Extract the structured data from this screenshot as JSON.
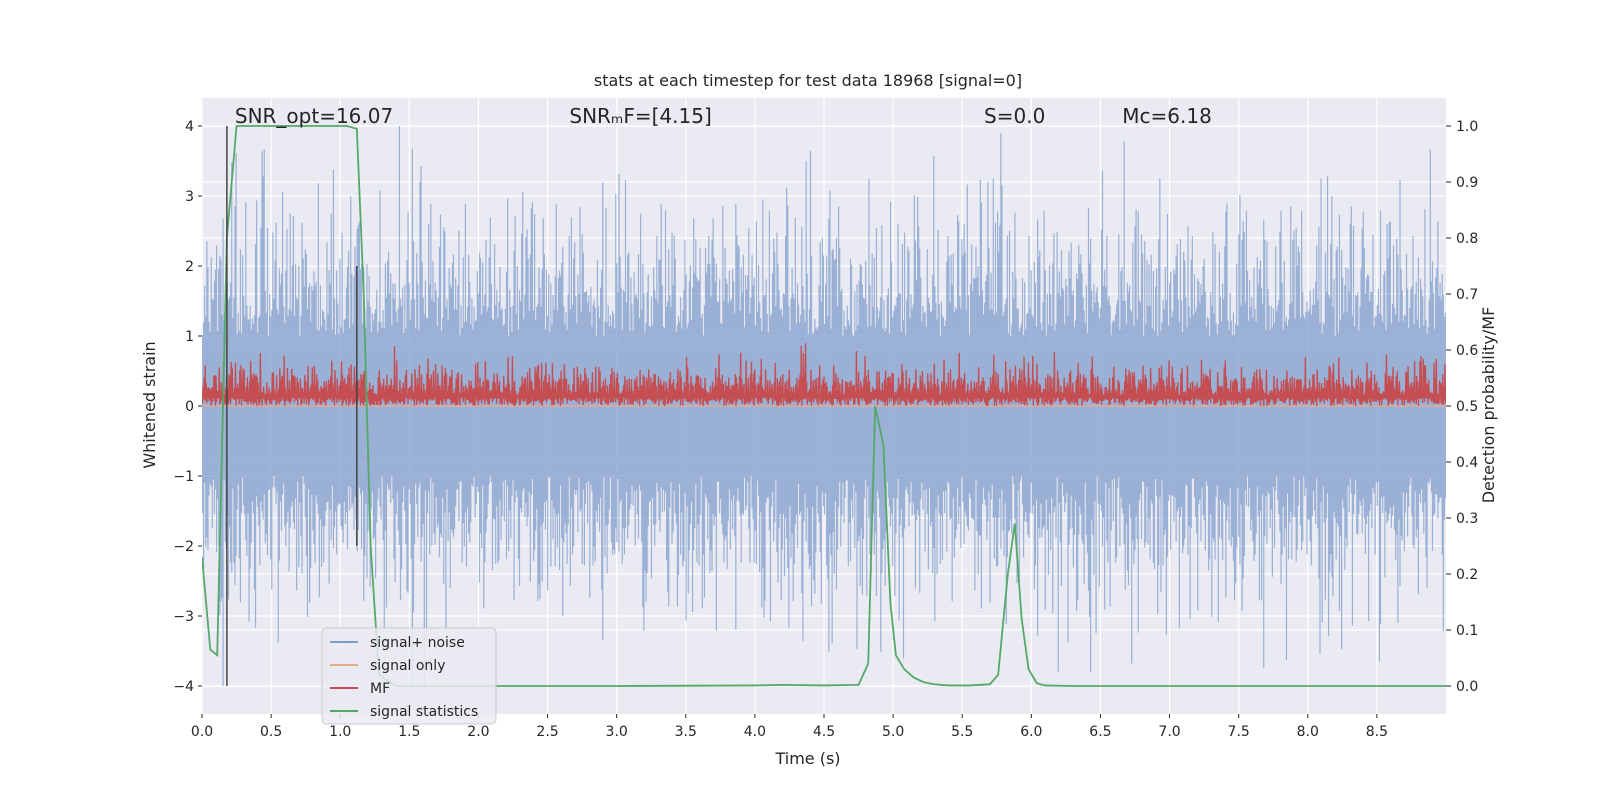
{
  "chart_data": {
    "type": "line",
    "title": "stats at each timestep for test data 18968 [signal=0]",
    "xlabel": "Time (s)",
    "ylabel": "Whitened strain",
    "ylabel_right": "Detection probability/MF",
    "xlim": [
      0.0,
      9.0
    ],
    "ylim": [
      -4.4,
      4.4
    ],
    "ylim_right": [
      -0.05,
      1.05
    ],
    "x_ticks": [
      0.0,
      0.5,
      1.0,
      1.5,
      2.0,
      2.5,
      3.0,
      3.5,
      4.0,
      4.5,
      5.0,
      5.5,
      6.0,
      6.5,
      7.0,
      7.5,
      8.0,
      8.5
    ],
    "x_tick_labels": [
      "0.0",
      "0.5",
      "1.0",
      "1.5",
      "2.0",
      "2.5",
      "3.0",
      "3.5",
      "4.0",
      "4.5",
      "5.0",
      "5.5",
      "6.0",
      "6.5",
      "7.0",
      "7.5",
      "8.0",
      "8.5"
    ],
    "y_ticks": [
      4,
      3,
      2,
      1,
      0,
      -1,
      -2,
      -3,
      -4
    ],
    "y_tick_labels": [
      "4",
      "3",
      "2",
      "1",
      "0",
      "−1",
      "−2",
      "−3",
      "−4"
    ],
    "y_right_ticks": [
      1.0,
      0.9,
      0.8,
      0.7,
      0.6,
      0.5,
      0.4,
      0.3,
      0.2,
      0.1,
      0.0
    ],
    "y_right_tick_labels": [
      "1.0",
      "0.9",
      "0.8",
      "0.7",
      "0.6",
      "0.5",
      "0.4",
      "0.3",
      "0.2",
      "0.1",
      "0.0"
    ],
    "grid": true,
    "legend_position": "bottom-left",
    "annotations": [
      {
        "id": "snr-opt",
        "text": "SNR_opt=16.07",
        "x": 0.18,
        "y": 4.1
      },
      {
        "id": "snr-mf",
        "text": "SNRₘF=[4.15]",
        "x": 2.6,
        "y": 4.1
      },
      {
        "id": "s-value",
        "text": "S=0.0",
        "x": 5.6,
        "y": 4.1
      },
      {
        "id": "mc-value",
        "text": "Mᴄ=6.18",
        "x": 6.6,
        "y": 4.1
      }
    ],
    "vertical_markers": [
      {
        "x": 0.18,
        "y_range": [
          -4.0,
          4.0
        ]
      },
      {
        "x": 1.12,
        "y_range": [
          -2.0,
          2.0
        ]
      }
    ],
    "series": [
      {
        "name": "signal+ noise",
        "color": "#7f9ccb",
        "axis": "left",
        "kind": "noise-band",
        "envelope_typical": [
          -2.2,
          2.3
        ],
        "envelope_peak": [
          -4.0,
          4.0
        ],
        "sample_count": 1150
      },
      {
        "name": "signal only",
        "color": "#e9a98b",
        "axis": "left",
        "kind": "line",
        "x": [
          0.0,
          9.0
        ],
        "y": [
          0.0,
          0.0
        ]
      },
      {
        "name": "MF",
        "color": "#c44e52",
        "axis": "right",
        "kind": "noise-band",
        "baseline": 0.5,
        "envelope_typical": [
          0.5,
          0.6
        ],
        "envelope_peak": [
          0.5,
          0.63
        ],
        "sample_count": 1150
      },
      {
        "name": "signal statistics",
        "color": "#55a868",
        "axis": "right",
        "kind": "line",
        "x": [
          0.0,
          0.06,
          0.11,
          0.18,
          0.25,
          0.4,
          0.8,
          1.05,
          1.12,
          1.17,
          1.22,
          1.28,
          1.4,
          2.0,
          3.0,
          4.0,
          4.2,
          4.5,
          4.75,
          4.82,
          4.87,
          4.93,
          4.98,
          5.02,
          5.08,
          5.15,
          5.22,
          5.3,
          5.4,
          5.55,
          5.7,
          5.76,
          5.83,
          5.88,
          5.93,
          5.98,
          6.04,
          6.1,
          6.3,
          7.0,
          8.0,
          9.0
        ],
        "y": [
          0.23,
          0.065,
          0.055,
          0.8,
          1.0,
          1.0,
          1.0,
          1.0,
          0.995,
          0.7,
          0.25,
          0.02,
          0.0,
          0.0,
          0.0,
          0.001,
          0.002,
          0.001,
          0.002,
          0.04,
          0.5,
          0.43,
          0.15,
          0.055,
          0.03,
          0.015,
          0.007,
          0.003,
          0.001,
          0.001,
          0.003,
          0.02,
          0.2,
          0.29,
          0.12,
          0.03,
          0.005,
          0.001,
          0.0,
          0.0,
          0.0,
          0.0
        ]
      }
    ]
  }
}
